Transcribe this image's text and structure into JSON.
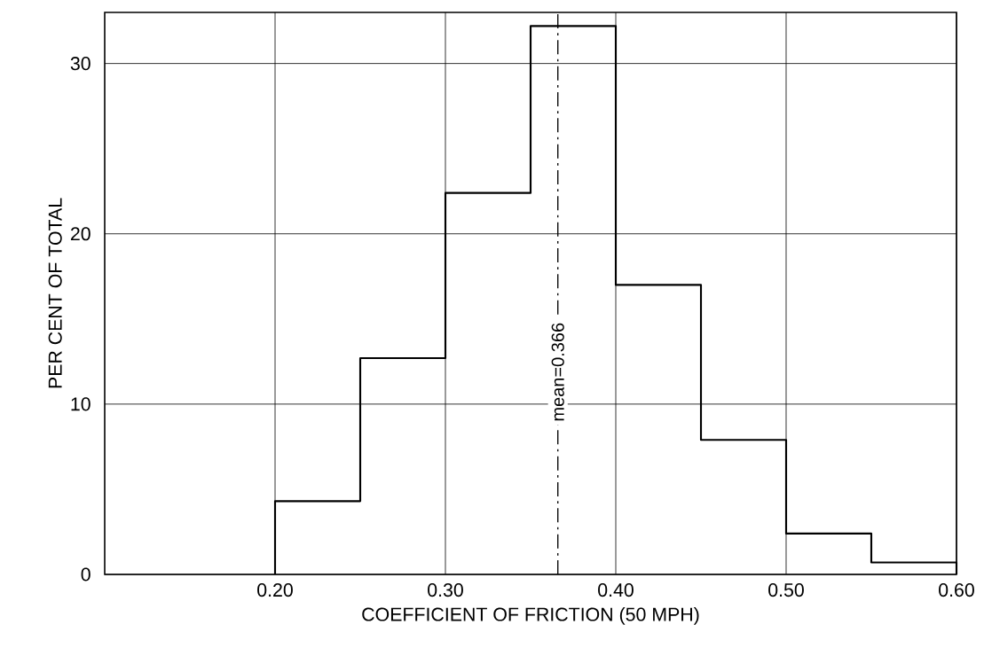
{
  "chart_data": {
    "type": "histogram",
    "xlabel": "COEFFICIENT OF FRICTION (50 MPH)",
    "ylabel": "PER CENT OF TOTAL",
    "bins": [
      0.2,
      0.25,
      0.3,
      0.35,
      0.4,
      0.45,
      0.5,
      0.55,
      0.6
    ],
    "values": [
      4.3,
      12.7,
      22.4,
      32.2,
      17.0,
      7.9,
      2.4,
      0.7
    ],
    "color": "#000000",
    "xlim": [
      0.1,
      0.6
    ],
    "xticks": [
      {
        "value": 0.2,
        "label": "0.20"
      },
      {
        "value": 0.3,
        "label": "0.30"
      },
      {
        "value": 0.4,
        "label": "0.40"
      },
      {
        "value": 0.5,
        "label": "0.50"
      },
      {
        "value": 0.6,
        "label": "0.60"
      }
    ],
    "ylim": [
      0,
      33
    ],
    "yticks": [
      0,
      10,
      20,
      30
    ],
    "grid": true,
    "ref_lines": [
      {
        "axis": "x",
        "value": 0.366,
        "label": "mean=0.366",
        "line_style": "dashed",
        "color": "#000000"
      }
    ]
  }
}
